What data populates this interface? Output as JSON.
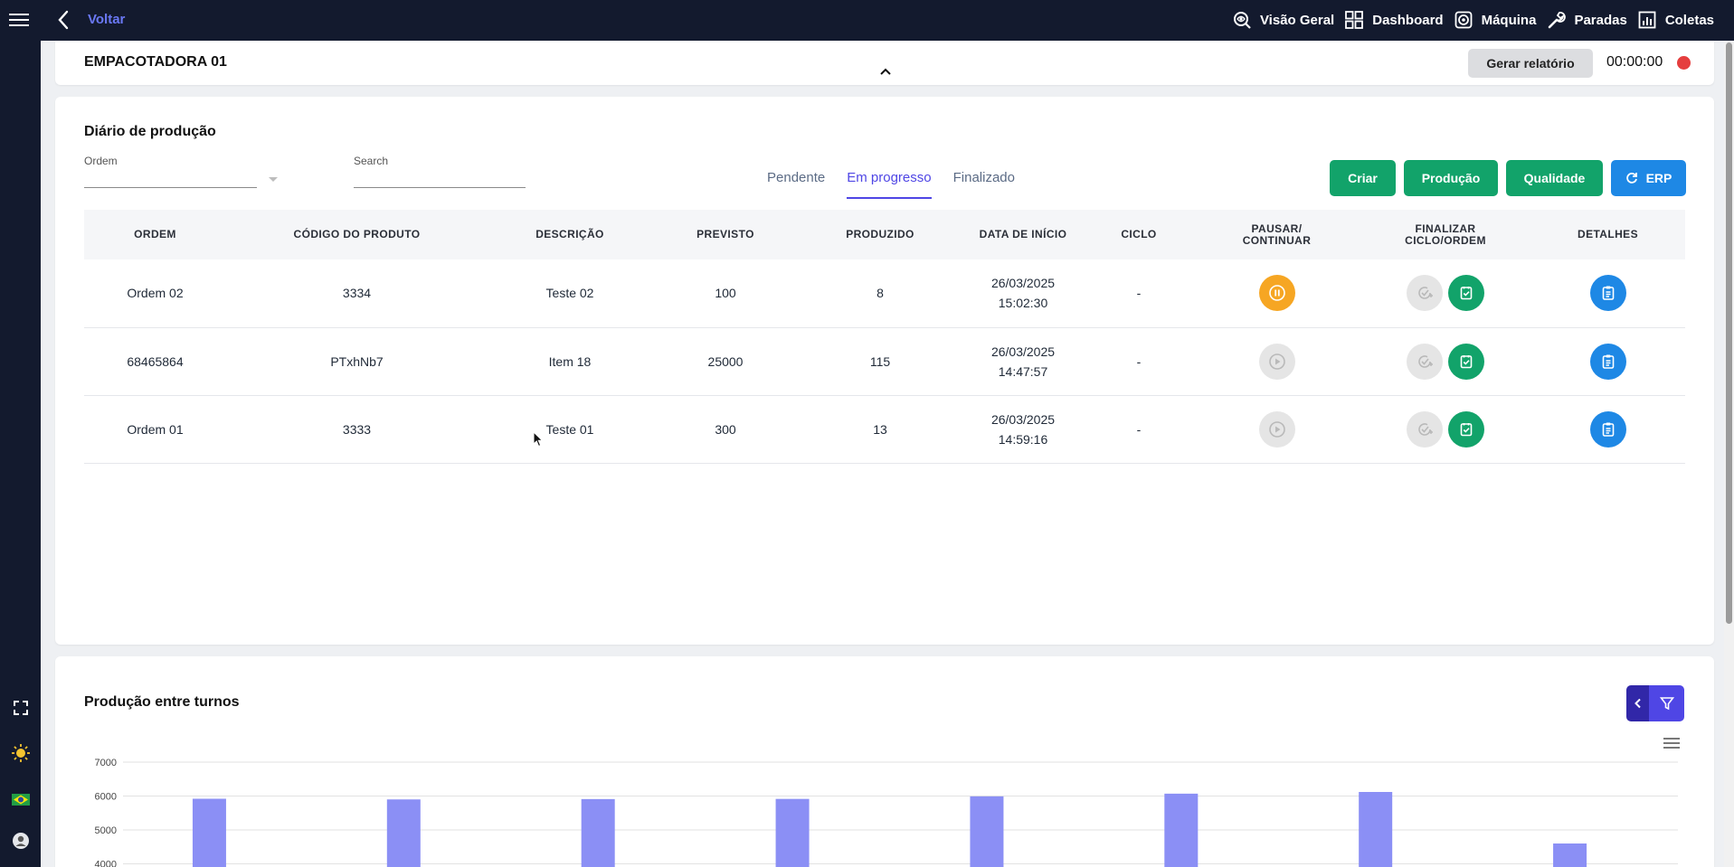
{
  "topbar": {
    "back_label": "Voltar",
    "nav": [
      {
        "label": "Visão Geral",
        "icon": "overview-icon"
      },
      {
        "label": "Dashboard",
        "icon": "dashboard-grid-icon"
      },
      {
        "label": "Máquina",
        "icon": "machine-icon"
      },
      {
        "label": "Paradas",
        "icon": "wrench-icon"
      },
      {
        "label": "Coletas",
        "icon": "bar-report-icon"
      }
    ]
  },
  "header": {
    "machine_name": "EMPACOTADORA 01",
    "report_button": "Gerar relatório",
    "timer": "00:00:00",
    "record_color": "#e53e3e"
  },
  "diary": {
    "title": "Diário de produção",
    "order_filter_label": "Ordem",
    "search_label": "Search",
    "search_value": "",
    "tabs": [
      {
        "label": "Pendente",
        "active": false
      },
      {
        "label": "Em progresso",
        "active": true
      },
      {
        "label": "Finalizado",
        "active": false
      }
    ],
    "buttons": {
      "create": "Criar",
      "production": "Produção",
      "quality": "Qualidade",
      "erp": "ERP"
    },
    "columns": {
      "order": "ORDEM",
      "product_code": "CÓDIGO DO PRODUTO",
      "description": "DESCRIÇÃO",
      "planned": "PREVISTO",
      "produced": "PRODUZIDO",
      "start_date": "DATA DE INÍCIO",
      "cycle": "CICLO",
      "pause_line1": "PAUSAR/",
      "pause_line2": "CONTINUAR",
      "finish_line1": "FINALIZAR",
      "finish_line2": "CICLO/ORDEM",
      "details": "DETALHES"
    },
    "rows": [
      {
        "order": "Ordem 02",
        "product_code": "3334",
        "description": "Teste 02",
        "planned": "100",
        "produced": "8",
        "date": "26/03/2025",
        "time": "15:02:30",
        "cycle": "-",
        "running": true
      },
      {
        "order": "68465864",
        "product_code": "PTxhNb7",
        "description": "Item 18",
        "planned": "25000",
        "produced": "115",
        "date": "26/03/2025",
        "time": "14:47:57",
        "cycle": "-",
        "running": false
      },
      {
        "order": "Ordem 01",
        "product_code": "3333",
        "description": "Teste 01",
        "planned": "300",
        "produced": "13",
        "date": "26/03/2025",
        "time": "14:59:16",
        "cycle": "-",
        "running": false
      }
    ]
  },
  "shift_chart": {
    "title": "Produção entre turnos"
  },
  "chart_data": {
    "type": "bar",
    "title": "Produção entre turnos",
    "y_ticks": [
      "7000",
      "6000",
      "5000",
      "4000"
    ],
    "ylim": [
      4000,
      7000
    ],
    "grid": true,
    "bar_color": "#8b8ff5",
    "categories": [
      "",
      "",
      "",
      "",
      "",
      "",
      "",
      ""
    ],
    "values": [
      5920,
      5900,
      5910,
      5915,
      5990,
      6070,
      6120,
      4600
    ]
  },
  "colors": {
    "navy": "#131a2e",
    "accent": "#4f46e5",
    "green": "#12a36a",
    "blue": "#1e88e5",
    "orange": "#f6a623"
  }
}
